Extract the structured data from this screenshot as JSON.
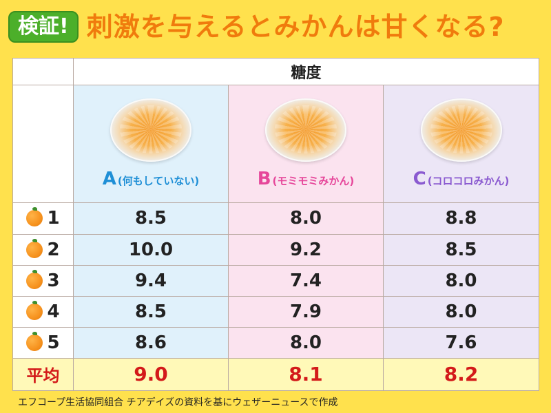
{
  "header": {
    "badge": "検証!",
    "title": "刺激を与えるとみかんは甘くなる?"
  },
  "table": {
    "metric_label": "糖度",
    "conditions": [
      {
        "letter": "A",
        "text": "(何もしていない)",
        "color": "#1f8fd6"
      },
      {
        "letter": "B",
        "text": "(モミモミみかん)",
        "color": "#e6469a"
      },
      {
        "letter": "C",
        "text": "(コロコロみかん)",
        "color": "#8a5ad0"
      }
    ],
    "rows": [
      {
        "label": "1",
        "values": [
          "8.5",
          "8.0",
          "8.8"
        ]
      },
      {
        "label": "2",
        "values": [
          "10.0",
          "9.2",
          "8.5"
        ]
      },
      {
        "label": "3",
        "values": [
          "9.4",
          "7.4",
          "8.0"
        ]
      },
      {
        "label": "4",
        "values": [
          "8.5",
          "7.9",
          "8.0"
        ]
      },
      {
        "label": "5",
        "values": [
          "8.6",
          "8.0",
          "7.6"
        ]
      }
    ],
    "average": {
      "label": "平均",
      "values": [
        "9.0",
        "8.1",
        "8.2"
      ]
    }
  },
  "source": "エフコープ生活協同組合 チアデイズの資料を基にウェザーニュースで作成",
  "icons": {
    "row_icon": "orange-icon",
    "condition_image": "mandarin-bowl-photo"
  }
}
